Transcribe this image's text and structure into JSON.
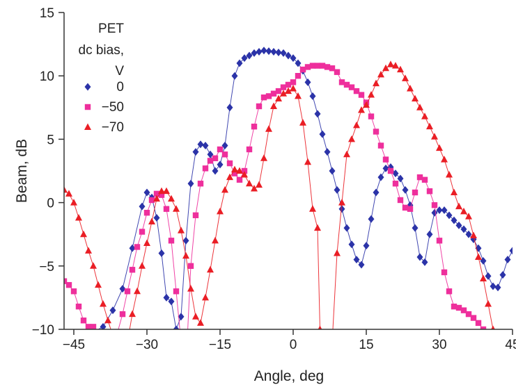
{
  "chart_data": {
    "type": "line",
    "title": "",
    "xlabel": "Angle, deg",
    "ylabel": "Beam, dB",
    "xlim": [
      -47,
      45
    ],
    "ylim": [
      -10,
      15
    ],
    "xticks": [
      -45,
      -30,
      -15,
      0,
      15,
      30,
      45
    ],
    "xtick_labels": [
      "−45",
      "−30",
      "−15",
      "0",
      "15",
      "30",
      "45"
    ],
    "yticks": [
      -10,
      -5,
      0,
      5,
      10,
      15
    ],
    "ytick_labels": [
      "−10",
      "−5",
      "0",
      "5",
      "10",
      "15"
    ],
    "grid": false,
    "legend": {
      "title_lines": [
        "PET",
        "dc bias,",
        "V"
      ],
      "placement": "top-left"
    },
    "series": [
      {
        "name": "0",
        "marker": "diamond",
        "color": "#2b33a8",
        "x": [
          -45,
          -43,
          -41,
          -39,
          -37,
          -35,
          -33,
          -31,
          -30,
          -29,
          -28,
          -27,
          -26,
          -25,
          -24,
          -23,
          -22,
          -21,
          -20,
          -19,
          -18,
          -17,
          -16,
          -15,
          -14,
          -13,
          -12,
          -11,
          -10,
          -9,
          -8,
          -7,
          -6,
          -5,
          -4,
          -3,
          -2,
          -1,
          0,
          1,
          2,
          3,
          4,
          5,
          6,
          7,
          8,
          9,
          10,
          11,
          12,
          13,
          14,
          15,
          16,
          17,
          18,
          19,
          20,
          21,
          22,
          23,
          24,
          25,
          26,
          27,
          28,
          29,
          30,
          31,
          32,
          33,
          34,
          35,
          36,
          37,
          38,
          39,
          40,
          41,
          42,
          43,
          44,
          45
        ],
        "y": [
          -11.5,
          -11,
          -10.2,
          -9.8,
          -8.5,
          -6.8,
          -3.6,
          -0.3,
          0.8,
          0.4,
          -1.2,
          -4,
          -7.5,
          -7.8,
          -10,
          -9,
          -3,
          1.5,
          4,
          4.6,
          4.5,
          3.8,
          2.5,
          3,
          4.5,
          7.5,
          10,
          11,
          11.4,
          11.6,
          11.8,
          11.9,
          12,
          11.95,
          11.9,
          11.85,
          11.8,
          11.6,
          11.4,
          11,
          10.4,
          9.5,
          8.4,
          7,
          5.4,
          4,
          2.5,
          1,
          -0.5,
          -2,
          -3.3,
          -4.5,
          -4.9,
          -3.4,
          -1.3,
          0.8,
          2,
          2.7,
          2.8,
          2.3,
          1.9,
          1,
          -0.2,
          -2,
          -4.3,
          -4.7,
          -2.5,
          -0.8,
          -0.6,
          -0.6,
          -1,
          -1.4,
          -1.8,
          -2.1,
          -2.5,
          -2.9,
          -3.6,
          -4.6,
          -5.8,
          -6.6,
          -6.7,
          -5.7,
          -4.5,
          -3.8
        ]
      },
      {
        "name": "−50",
        "marker": "square",
        "color": "#ee2f9c",
        "x": [
          -47,
          -46,
          -45,
          -44,
          -43,
          -42,
          -41,
          -40,
          -39,
          -38,
          -37,
          -36,
          -35,
          -34,
          -33,
          -32,
          -31,
          -30,
          -29,
          -28,
          -27,
          -26,
          -25,
          -24,
          -23,
          -22,
          -21,
          -20,
          -19,
          -18,
          -17,
          -16,
          -15,
          -14,
          -13,
          -12,
          -11,
          -10,
          -9,
          -8,
          -7,
          -6,
          -5,
          -4,
          -3,
          -2,
          -1,
          0,
          1,
          2,
          3,
          4,
          5,
          6,
          7,
          8,
          9,
          10,
          11,
          12,
          13,
          14,
          15,
          16,
          17,
          18,
          19,
          20,
          21,
          22,
          23,
          24,
          25,
          26,
          27,
          28,
          29,
          30,
          31,
          32,
          33,
          34,
          35,
          36,
          37,
          38,
          39
        ],
        "y": [
          -6.2,
          -6.5,
          -7,
          -8.2,
          -9.3,
          -9.8,
          -9.8,
          -10.2,
          -11,
          -12,
          -11,
          -10.2,
          -8.8,
          -7,
          -5.3,
          -3.5,
          -2.3,
          -0.8,
          0.2,
          0.7,
          0.6,
          -0.5,
          -3,
          -7,
          -11,
          -13,
          -5,
          -1,
          1.5,
          2.7,
          3.3,
          3.5,
          4.2,
          3.8,
          3.1,
          2.3,
          1.8,
          2.5,
          4.2,
          6,
          7.6,
          8.3,
          8.4,
          8.6,
          8.8,
          9.1,
          9.3,
          9.5,
          10,
          10.5,
          10.7,
          10.8,
          10.8,
          10.8,
          10.7,
          10.6,
          10.3,
          9.5,
          9.3,
          9.1,
          8.8,
          8.5,
          7.9,
          6.8,
          5.6,
          4.5,
          3.4,
          2.5,
          1.5,
          0.2,
          -0.4,
          -0.5,
          0.8,
          2,
          1.8,
          0.9,
          -0.2,
          -3,
          -5.5,
          -7,
          -8.2,
          -8.3,
          -8.5,
          -8.8,
          -9.1,
          -9.5,
          -10
        ]
      },
      {
        "name": "−70",
        "marker": "triangle",
        "color": "#ea1e25",
        "x": [
          -47,
          -46,
          -45,
          -44,
          -43,
          -42,
          -41,
          -40,
          -39,
          -38,
          -37,
          -36,
          -35,
          -34,
          -33,
          -32,
          -31,
          -30,
          -29,
          -28,
          -27,
          -26,
          -25,
          -24,
          -23,
          -22,
          -21,
          -20,
          -19,
          -18,
          -17,
          -16,
          -15,
          -14,
          -13,
          -12,
          -11,
          -10,
          -9,
          -8,
          -7,
          -6,
          -5,
          -4,
          -3,
          -2,
          -1,
          0,
          1,
          2,
          3,
          4,
          5,
          5.5,
          6,
          7,
          8,
          9,
          10,
          11,
          12,
          13,
          14,
          15,
          16,
          17,
          18,
          19,
          20,
          21,
          22,
          23,
          24,
          25,
          26,
          27,
          28,
          29,
          30,
          31,
          32,
          33,
          34,
          35,
          36,
          37,
          38,
          39,
          40,
          41
        ],
        "y": [
          1,
          0.7,
          0,
          -1.2,
          -2.5,
          -3.8,
          -5,
          -6.5,
          -8,
          -9.3,
          -10.5,
          -11.5,
          -12,
          -11,
          -8.8,
          -7,
          -5,
          -3.2,
          -1.5,
          0.3,
          0.9,
          0.9,
          0.3,
          -0.5,
          -2.2,
          -4.2,
          -6.8,
          -9,
          -9.5,
          -7.5,
          -5.3,
          -3,
          -0.7,
          1,
          2,
          2.6,
          2.5,
          2.2,
          1.5,
          1.1,
          1.4,
          3.5,
          5.8,
          7.6,
          8.2,
          8.6,
          8.8,
          9,
          8.4,
          6.3,
          3.2,
          -0.5,
          -2,
          -10,
          -13,
          -14,
          -11,
          -4,
          0,
          3.8,
          5,
          6.1,
          7.3,
          7.7,
          8.5,
          9.4,
          10.1,
          10.6,
          10.9,
          10.8,
          10.5,
          9.8,
          9,
          8.2,
          7.5,
          6.8,
          6,
          5.2,
          4.3,
          3.4,
          2.2,
          0.8,
          -0.3,
          -0.7,
          -1.1,
          -2.6,
          -4.3,
          -6,
          -8,
          -10
        ]
      }
    ]
  }
}
